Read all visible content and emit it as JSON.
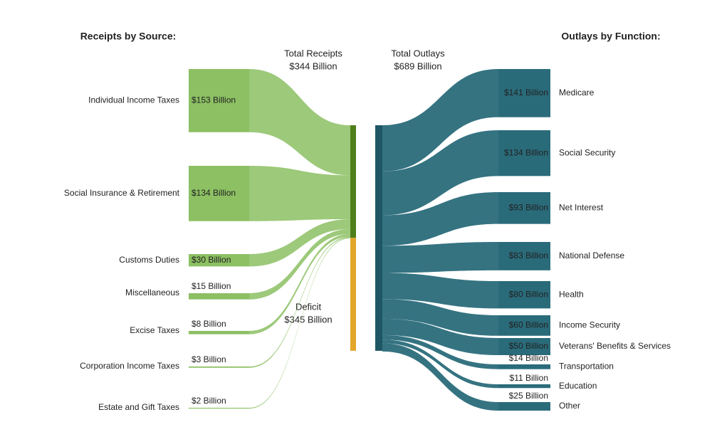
{
  "chart_data": {
    "type": "sankey",
    "receipts_title": "Receipts by Source:",
    "outlays_title": "Outlays by Function:",
    "receipts": {
      "name": "Total Receipts",
      "value": 344,
      "value_label": "$344 Billion",
      "color": "#4f7f1a",
      "flow_color": "#8cc063",
      "categories": [
        "Individual Income Taxes",
        "Social Insurance & Retirement",
        "Customs Duties",
        "Miscellaneous",
        "Excise Taxes",
        "Corporation Income Taxes",
        "Estate and Gift Taxes"
      ],
      "values": [
        153,
        134,
        30,
        15,
        8,
        3,
        2
      ],
      "value_labels": [
        "$153 Billion",
        "$134 Billion",
        "$30 Billion",
        "$15 Billion",
        "$8 Billion",
        "$3 Billion",
        "$2 Billion"
      ]
    },
    "outlays": {
      "name": "Total Outlays",
      "value": 689,
      "value_label": "$689 Billion",
      "color": "#1f5664",
      "flow_color": "#2a6b7a",
      "categories": [
        "Medicare",
        "Social Security",
        "Net Interest",
        "National Defense",
        "Health",
        "Income Security",
        "Veterans' Benefits & Services",
        "Transportation",
        "Education",
        "Other"
      ],
      "values": [
        141,
        134,
        93,
        83,
        80,
        60,
        50,
        14,
        11,
        25
      ],
      "value_labels": [
        "$141 Billion",
        "$134 Billion",
        "$93 Billion",
        "$83 Billion",
        "$80 Billion",
        "$60 Billion",
        "$50 Billion",
        "$14 Billion",
        "$11 Billion",
        "$25 Billion"
      ]
    },
    "deficit": {
      "name": "Deficit",
      "value": 345,
      "value_label": "$345 Billion",
      "color": "#e3a62a"
    }
  }
}
